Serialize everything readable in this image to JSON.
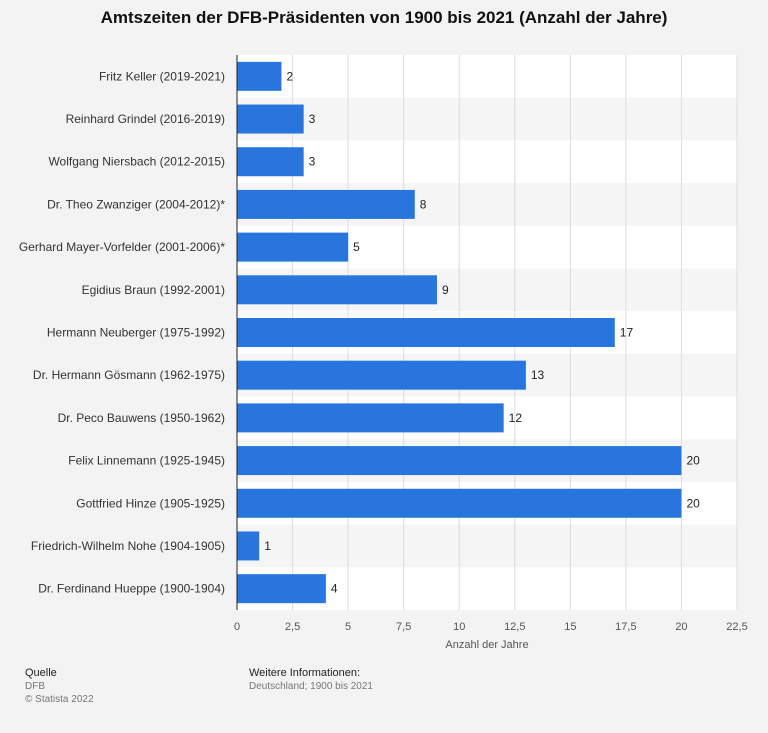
{
  "chart_data": {
    "type": "bar",
    "orientation": "horizontal",
    "title": "Amtszeiten der DFB-Präsidenten von 1900 bis 2021 (Anzahl der Jahre)",
    "xlabel": "Anzahl der Jahre",
    "categories": [
      "Fritz Keller (2019-2021)",
      "Reinhard Grindel (2016-2019)",
      "Wolfgang Niersbach (2012-2015)",
      "Dr. Theo Zwanziger (2004-2012)*",
      "Gerhard Mayer-Vorfelder (2001-2006)*",
      "Egidius Braun (1992-2001)",
      "Hermann Neuberger (1975-1992)",
      "Dr. Hermann Gösmann (1962-1975)",
      "Dr. Peco Bauwens (1950-1962)",
      "Felix Linnemann (1925-1945)",
      "Gottfried Hinze (1905-1925)",
      "Friedrich-Wilhelm Nohe (1904-1905)",
      "Dr. Ferdinand Hueppe (1900-1904)"
    ],
    "values": [
      2,
      3,
      3,
      8,
      5,
      9,
      17,
      13,
      12,
      20,
      20,
      1,
      4
    ],
    "data_labels": [
      "2",
      "3",
      "3",
      "8",
      "5",
      "9",
      "17",
      "13",
      "12",
      "20",
      "20",
      "1",
      "4"
    ],
    "xlim": [
      0,
      22.5
    ],
    "ticks": [
      0,
      2.5,
      5,
      7.5,
      10,
      12.5,
      15,
      17.5,
      20,
      22.5
    ],
    "tick_labels": [
      "0",
      "2,5",
      "5",
      "7,5",
      "10",
      "12,5",
      "15",
      "17,5",
      "20",
      "22,5"
    ],
    "grid": true,
    "bar_color": "#2876dd"
  },
  "footer": {
    "source_heading": "Quelle",
    "source": "DFB",
    "copyright": "© Statista 2022",
    "info_heading": "Weitere Informationen:",
    "info": "Deutschland; 1900 bis 2021"
  }
}
